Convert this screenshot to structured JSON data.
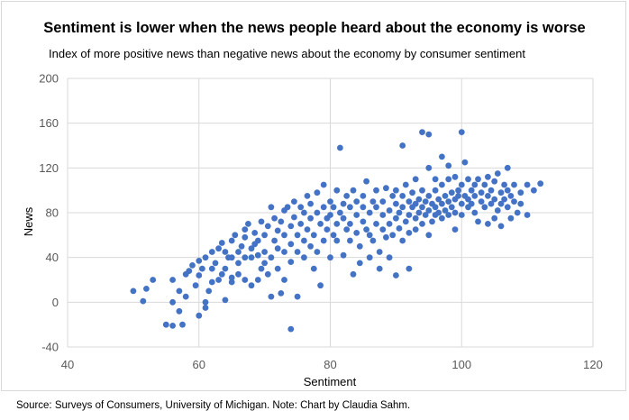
{
  "source_note": "Source: Surveys of Consumers, University of Michigan. Note: Chart by Claudia Sahm.",
  "colors": {
    "points": "#4472c4",
    "grid": "#d9d9d9",
    "text": "#595959"
  },
  "chart_data": {
    "type": "scatter",
    "title": "Sentiment is lower when the news people heard about the economy is worse",
    "subtitle": "Index of more positive news than negative news about the economy by consumer sentiment",
    "xlabel": "Sentiment",
    "ylabel": "News",
    "xlim": [
      40,
      120
    ],
    "ylim": [
      -40,
      200
    ],
    "xticks": [
      40,
      60,
      80,
      100,
      120
    ],
    "yticks": [
      -40,
      0,
      40,
      80,
      120,
      160,
      200
    ],
    "grid": true,
    "legend": "none",
    "points": [
      [
        50,
        10
      ],
      [
        51.5,
        1
      ],
      [
        52,
        12
      ],
      [
        53,
        20
      ],
      [
        55,
        -20
      ],
      [
        56,
        -21
      ],
      [
        56,
        20
      ],
      [
        56,
        0
      ],
      [
        57,
        -8
      ],
      [
        57,
        10
      ],
      [
        57.5,
        -20
      ],
      [
        58,
        5
      ],
      [
        58,
        25
      ],
      [
        58.5,
        28
      ],
      [
        59,
        33
      ],
      [
        59.5,
        15
      ],
      [
        60,
        24
      ],
      [
        60,
        37
      ],
      [
        60,
        -12
      ],
      [
        60.5,
        30
      ],
      [
        61,
        40
      ],
      [
        61,
        0
      ],
      [
        61,
        -5
      ],
      [
        61.5,
        10
      ],
      [
        62,
        18
      ],
      [
        62,
        30
      ],
      [
        62,
        45
      ],
      [
        62.5,
        35
      ],
      [
        63,
        20
      ],
      [
        63,
        48
      ],
      [
        63.5,
        53
      ],
      [
        63.5,
        25
      ],
      [
        64,
        30
      ],
      [
        64,
        2
      ],
      [
        64,
        45
      ],
      [
        64.5,
        40
      ],
      [
        65,
        55
      ],
      [
        65,
        18
      ],
      [
        65,
        40
      ],
      [
        65,
        22
      ],
      [
        65.5,
        60
      ],
      [
        66,
        45
      ],
      [
        66,
        35
      ],
      [
        66,
        25
      ],
      [
        66.5,
        50
      ],
      [
        67,
        40
      ],
      [
        67,
        20
      ],
      [
        67,
        65
      ],
      [
        67,
        58
      ],
      [
        67.5,
        70
      ],
      [
        68,
        48
      ],
      [
        68,
        15
      ],
      [
        68,
        40
      ],
      [
        68.5,
        52
      ],
      [
        68.5,
        62
      ],
      [
        69,
        55
      ],
      [
        69,
        42
      ],
      [
        69,
        20
      ],
      [
        69.5,
        30
      ],
      [
        69.5,
        72
      ],
      [
        70,
        45
      ],
      [
        70,
        60
      ],
      [
        70,
        35
      ],
      [
        70.5,
        68
      ],
      [
        70.5,
        25
      ],
      [
        71,
        5
      ],
      [
        71,
        40
      ],
      [
        71,
        85
      ],
      [
        71.5,
        55
      ],
      [
        71.5,
        75
      ],
      [
        72,
        64
      ],
      [
        72,
        48
      ],
      [
        72,
        30
      ],
      [
        72.5,
        8
      ],
      [
        72.5,
        72
      ],
      [
        73,
        60
      ],
      [
        73,
        45
      ],
      [
        73,
        82
      ],
      [
        73,
        20
      ],
      [
        73.5,
        85
      ],
      [
        74,
        68
      ],
      [
        74,
        52
      ],
      [
        74,
        36
      ],
      [
        74,
        -24
      ],
      [
        74.5,
        76
      ],
      [
        74.5,
        90
      ],
      [
        75,
        60
      ],
      [
        75,
        45
      ],
      [
        75,
        5
      ],
      [
        75.5,
        70
      ],
      [
        75.5,
        85
      ],
      [
        76,
        55
      ],
      [
        76,
        80
      ],
      [
        76,
        40
      ],
      [
        76.5,
        95
      ],
      [
        76.5,
        65
      ],
      [
        77,
        75
      ],
      [
        77,
        50
      ],
      [
        77,
        88
      ],
      [
        77.5,
        30
      ],
      [
        77.5,
        60
      ],
      [
        78,
        80
      ],
      [
        78,
        98
      ],
      [
        78,
        45
      ],
      [
        78.5,
        70
      ],
      [
        78.5,
        15
      ],
      [
        79,
        85
      ],
      [
        79,
        55
      ],
      [
        79,
        105
      ],
      [
        79.5,
        75
      ],
      [
        79.5,
        65
      ],
      [
        80,
        90
      ],
      [
        80,
        78
      ],
      [
        80,
        40
      ],
      [
        80.5,
        60
      ],
      [
        80.5,
        85
      ],
      [
        81,
        70
      ],
      [
        81,
        100
      ],
      [
        81,
        55
      ],
      [
        81.5,
        138
      ],
      [
        81.5,
        80
      ],
      [
        82,
        75
      ],
      [
        82,
        88
      ],
      [
        82,
        42
      ],
      [
        82.5,
        65
      ],
      [
        82.5,
        95
      ],
      [
        83,
        70
      ],
      [
        83,
        55
      ],
      [
        83,
        85
      ],
      [
        83.5,
        25
      ],
      [
        83.5,
        100
      ],
      [
        84,
        62
      ],
      [
        84,
        78
      ],
      [
        84,
        90
      ],
      [
        84.5,
        50
      ],
      [
        84.5,
        35
      ],
      [
        85,
        85
      ],
      [
        85,
        72
      ],
      [
        85,
        95
      ],
      [
        85.5,
        65
      ],
      [
        85.5,
        108
      ],
      [
        86,
        80
      ],
      [
        86,
        40
      ],
      [
        86,
        60
      ],
      [
        86.5,
        90
      ],
      [
        86.5,
        55
      ],
      [
        87,
        70
      ],
      [
        87,
        85
      ],
      [
        87,
        100
      ],
      [
        87.5,
        45
      ],
      [
        87.5,
        30
      ],
      [
        88,
        78
      ],
      [
        88,
        65
      ],
      [
        88,
        90
      ],
      [
        88.5,
        58
      ],
      [
        88.5,
        102
      ],
      [
        89,
        82
      ],
      [
        89,
        40
      ],
      [
        89,
        70
      ],
      [
        89.5,
        95
      ],
      [
        89.5,
        60
      ],
      [
        90,
        88
      ],
      [
        90,
        75
      ],
      [
        90,
        24
      ],
      [
        90,
        100
      ],
      [
        90.5,
        66
      ],
      [
        90.5,
        80
      ],
      [
        91,
        95
      ],
      [
        91,
        55
      ],
      [
        91,
        85
      ],
      [
        91,
        140
      ],
      [
        91.5,
        72
      ],
      [
        91.5,
        105
      ],
      [
        92,
        90
      ],
      [
        92,
        78
      ],
      [
        92,
        62
      ],
      [
        92,
        30
      ],
      [
        92.5,
        85
      ],
      [
        92.5,
        98
      ],
      [
        93,
        75
      ],
      [
        93,
        88
      ],
      [
        93,
        65
      ],
      [
        93,
        110
      ],
      [
        93.5,
        80
      ],
      [
        93.5,
        92
      ],
      [
        94,
        70
      ],
      [
        94,
        85
      ],
      [
        94,
        100
      ],
      [
        94,
        152
      ],
      [
        94.5,
        78
      ],
      [
        94.5,
        90
      ],
      [
        95,
        82
      ],
      [
        95,
        95
      ],
      [
        95,
        60
      ],
      [
        95,
        150
      ],
      [
        95,
        120
      ],
      [
        95.5,
        88
      ],
      [
        95.5,
        72
      ],
      [
        96,
        85
      ],
      [
        96,
        100
      ],
      [
        96,
        78
      ],
      [
        96,
        110
      ],
      [
        96.5,
        92
      ],
      [
        96.5,
        80
      ],
      [
        97,
        88
      ],
      [
        97,
        105
      ],
      [
        97,
        75
      ],
      [
        97,
        130
      ],
      [
        97.5,
        95
      ],
      [
        97.5,
        82
      ],
      [
        98,
        90
      ],
      [
        98,
        110
      ],
      [
        98,
        78
      ],
      [
        98,
        122
      ],
      [
        98.5,
        98
      ],
      [
        98.5,
        85
      ],
      [
        99,
        92
      ],
      [
        99,
        80
      ],
      [
        99,
        112
      ],
      [
        99,
        65
      ],
      [
        99.5,
        95
      ],
      [
        99.5,
        100
      ],
      [
        100,
        88
      ],
      [
        100,
        105
      ],
      [
        100,
        152
      ],
      [
        100,
        78
      ],
      [
        100.5,
        95
      ],
      [
        100.5,
        125
      ],
      [
        101,
        92
      ],
      [
        101,
        85
      ],
      [
        101,
        110
      ],
      [
        101.5,
        100
      ],
      [
        101.5,
        88
      ],
      [
        102,
        95
      ],
      [
        102,
        80
      ],
      [
        102,
        105
      ],
      [
        102.5,
        72
      ],
      [
        102.5,
        110
      ],
      [
        103,
        98
      ],
      [
        103,
        90
      ],
      [
        103.5,
        85
      ],
      [
        103.5,
        105
      ],
      [
        104,
        95
      ],
      [
        104,
        112
      ],
      [
        104,
        70
      ],
      [
        104.5,
        100
      ],
      [
        104.5,
        88
      ],
      [
        105,
        92
      ],
      [
        105,
        108
      ],
      [
        105,
        75
      ],
      [
        105.5,
        82
      ],
      [
        105.5,
        115
      ],
      [
        106,
        98
      ],
      [
        106,
        88
      ],
      [
        106,
        68
      ],
      [
        106.5,
        105
      ],
      [
        106.5,
        92
      ],
      [
        107,
        85
      ],
      [
        107,
        100
      ],
      [
        107,
        120
      ],
      [
        107.5,
        75
      ],
      [
        107.5,
        95
      ],
      [
        108,
        90
      ],
      [
        108,
        105
      ],
      [
        108.5,
        80
      ],
      [
        109,
        98
      ],
      [
        109,
        88
      ],
      [
        110,
        105
      ],
      [
        110,
        78
      ],
      [
        111,
        100
      ],
      [
        112,
        106
      ]
    ]
  }
}
